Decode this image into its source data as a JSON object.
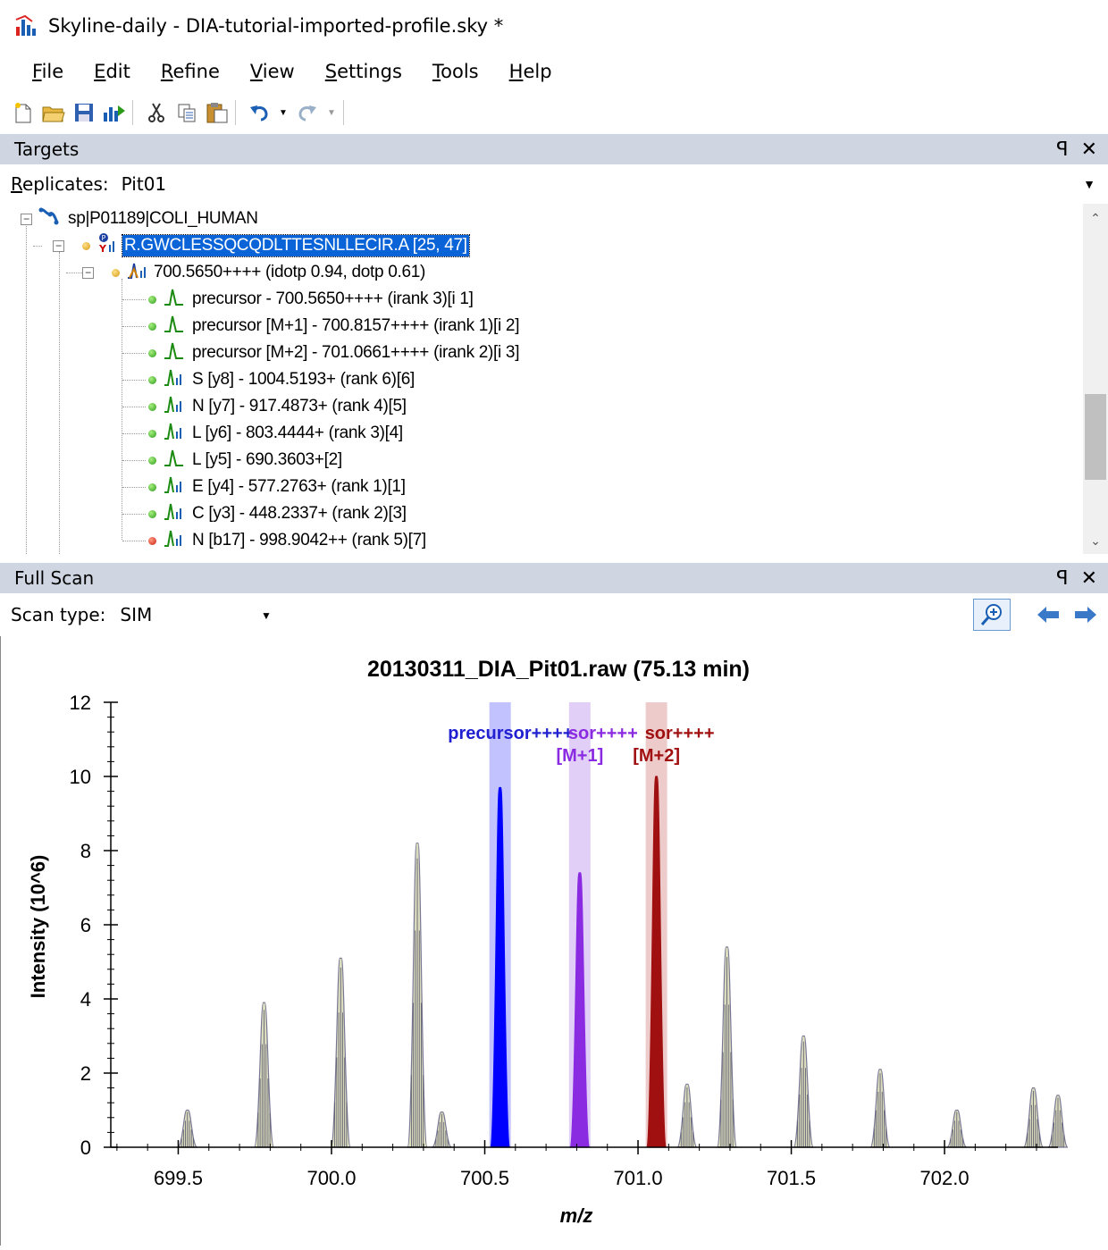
{
  "window": {
    "title": "Skyline-daily - DIA-tutorial-imported-profile.sky *",
    "app_icon": "skyline-app-icon"
  },
  "menu": [
    {
      "label": "File",
      "accel": "F",
      "rest": "ile"
    },
    {
      "label": "Edit",
      "accel": "E",
      "rest": "dit"
    },
    {
      "label": "Refine",
      "accel": "R",
      "rest": "efine"
    },
    {
      "label": "View",
      "accel": "V",
      "rest": "iew"
    },
    {
      "label": "Settings",
      "accel": "S",
      "rest": "ettings"
    },
    {
      "label": "Tools",
      "accel": "T",
      "rest": "ools"
    },
    {
      "label": "Help",
      "accel": "H",
      "rest": "elp"
    }
  ],
  "toolbar": {
    "icons": [
      "new-file-icon",
      "open-folder-icon",
      "save-icon",
      "import-icon",
      "cut-icon",
      "copy-icon",
      "paste-icon",
      "undo-icon",
      "redo-icon"
    ]
  },
  "targets_panel": {
    "title": "Targets",
    "pin": "ꟼ",
    "close": "✕"
  },
  "replicates": {
    "label": "Replicates:",
    "value": "Pit01"
  },
  "tree": {
    "protein": "sp|P01189|COLI_HUMAN",
    "peptide": "R.GWCLESSQCQDLTTESNLLECIR.A [25, 47]",
    "precursor": "700.5650++++ (idotp 0.94, dotp 0.61)",
    "transitions": [
      {
        "text": "precursor - 700.5650++++ (irank 3)[i 1]",
        "status": "green",
        "icon": "peak-icon"
      },
      {
        "text": "precursor [M+1] - 700.8157++++ (irank 1)[i 2]",
        "status": "green",
        "icon": "peak-icon"
      },
      {
        "text": "precursor [M+2] - 701.0661++++ (irank 2)[i 3]",
        "status": "green",
        "icon": "peak-icon"
      },
      {
        "text": "S [y8] - 1004.5193+ (rank 6)[6]",
        "status": "green",
        "icon": "spectrum-peak-icon"
      },
      {
        "text": "N [y7] - 917.4873+ (rank 4)[5]",
        "status": "green",
        "icon": "spectrum-peak-icon"
      },
      {
        "text": "L [y6] - 803.4444+ (rank 3)[4]",
        "status": "green",
        "icon": "spectrum-peak-icon"
      },
      {
        "text": "L [y5] - 690.3603+[2]",
        "status": "green",
        "icon": "peak-icon"
      },
      {
        "text": "E [y4] - 577.2763+ (rank 1)[1]",
        "status": "green",
        "icon": "spectrum-peak-icon"
      },
      {
        "text": "C [y3] - 448.2337+ (rank 2)[3]",
        "status": "green",
        "icon": "spectrum-peak-icon"
      },
      {
        "text": "N [b17] - 998.9042++ (rank 5)[7]",
        "status": "red",
        "icon": "spectrum-peak-icon"
      }
    ]
  },
  "fullscan_panel": {
    "title": "Full Scan",
    "pin": "ꟼ",
    "close": "✕"
  },
  "scan_type": {
    "label": "Scan type:",
    "value": "SIM"
  },
  "chart_data": {
    "type": "line",
    "title": "20130311_DIA_Pit01.raw  (75.13 min)",
    "xlabel": "m/z",
    "ylabel": "Intensity (10^6)",
    "xlim": [
      699.28,
      702.37
    ],
    "ylim": [
      0,
      12
    ],
    "xticks": [
      699.5,
      700.0,
      700.5,
      701.0,
      701.5,
      702.0
    ],
    "xtick_labels": [
      "699.5",
      "700.0",
      "700.5",
      "701.0",
      "701.5",
      "702.0"
    ],
    "yticks": [
      0,
      2,
      4,
      6,
      8,
      10,
      12
    ],
    "ytick_labels": [
      "0",
      "2",
      "4",
      "6",
      "8",
      "10",
      "12"
    ],
    "peaks": [
      {
        "mz": 699.53,
        "height": 1.0
      },
      {
        "mz": 699.78,
        "height": 3.9
      },
      {
        "mz": 700.03,
        "height": 5.1
      },
      {
        "mz": 700.28,
        "height": 8.2
      },
      {
        "mz": 700.36,
        "height": 0.95
      },
      {
        "mz": 700.55,
        "height": 9.7,
        "color": "#0000ff",
        "series": "precursor"
      },
      {
        "mz": 700.81,
        "height": 7.4,
        "color": "#8a2be2",
        "series": "precursor [M+1]"
      },
      {
        "mz": 701.06,
        "height": 10.0,
        "color": "#a01010",
        "series": "precursor [M+2]"
      },
      {
        "mz": 701.16,
        "height": 1.7
      },
      {
        "mz": 701.29,
        "height": 5.4
      },
      {
        "mz": 701.54,
        "height": 3.0
      },
      {
        "mz": 701.79,
        "height": 2.1
      },
      {
        "mz": 702.04,
        "height": 1.0
      },
      {
        "mz": 702.29,
        "height": 1.6
      },
      {
        "mz": 702.37,
        "height": 1.4
      }
    ],
    "bands": [
      {
        "mz": 700.55,
        "color": "#8f8fff",
        "series": "precursor"
      },
      {
        "mz": 700.81,
        "color": "#c8a8f0",
        "series": "precursor [M+1]"
      },
      {
        "mz": 701.06,
        "color": "#e0a0a0",
        "series": "precursor [M+2]"
      }
    ],
    "annotations": [
      {
        "text": "precursor++++",
        "mz": 700.45,
        "y": 11.2,
        "color": "#2020d0"
      },
      {
        "text": "sor++++",
        "mz": 700.81,
        "y": 11.2,
        "color": "#8a2be2"
      },
      {
        "text": "[M+1]",
        "mz": 700.81,
        "y": 10.6,
        "color": "#8a2be2"
      },
      {
        "text": "sor++++",
        "mz": 701.06,
        "y": 11.2,
        "color": "#a01010"
      },
      {
        "text": "[M+2]",
        "mz": 701.06,
        "y": 10.6,
        "color": "#a01010"
      }
    ],
    "grid": false
  }
}
